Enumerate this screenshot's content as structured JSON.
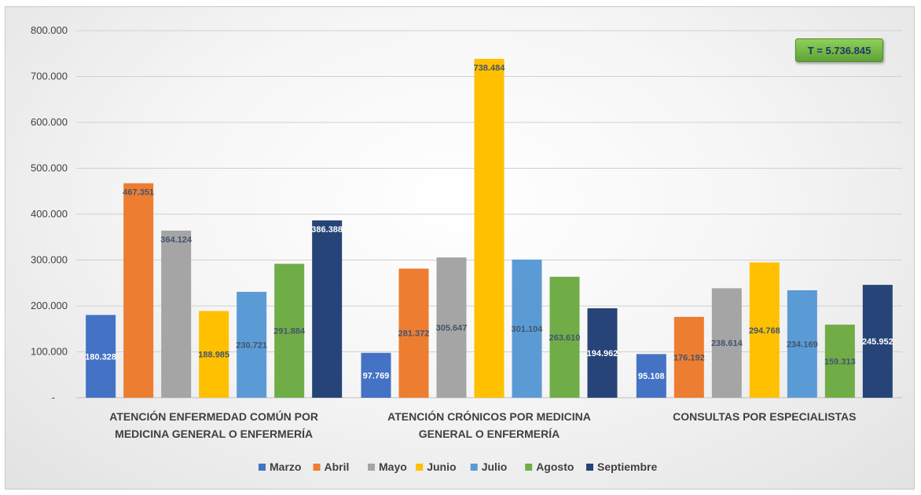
{
  "chart_data": {
    "type": "bar",
    "categories": [
      [
        "ATENCIÓN ENFERMEDAD COMÚN POR",
        "MEDICINA GENERAL O ENFERMERÍA"
      ],
      [
        "ATENCIÓN CRÓNICOS POR MEDICINA",
        "GENERAL O ENFERMERÍA"
      ],
      [
        "CONSULTAS POR ESPECIALISTAS"
      ]
    ],
    "series": [
      {
        "name": "Marzo",
        "color": "#4472c4",
        "values": [
          180328,
          97769,
          95108
        ],
        "labels": [
          "180.328",
          "97.769",
          "95.108"
        ],
        "label_color": "#ffffff"
      },
      {
        "name": "Abril",
        "color": "#ed7d31",
        "values": [
          467351,
          281372,
          176192
        ],
        "labels": [
          "467.351",
          "281.372",
          "176.192"
        ],
        "label_color": "#44546a"
      },
      {
        "name": "Mayo",
        "color": "#a5a5a5",
        "values": [
          364124,
          305647,
          238614
        ],
        "labels": [
          "364.124",
          "305.647",
          "238.614"
        ],
        "label_color": "#44546a"
      },
      {
        "name": "Junio",
        "color": "#ffc000",
        "values": [
          188985,
          738484,
          294768
        ],
        "labels": [
          "188.985",
          "738.484",
          "294.768"
        ],
        "label_color": "#44546a"
      },
      {
        "name": "Julio",
        "color": "#5b9bd5",
        "values": [
          230721,
          301104,
          234169
        ],
        "labels": [
          "230.721",
          "301.104",
          "234.169"
        ],
        "label_color": "#44546a"
      },
      {
        "name": "Agosto",
        "color": "#70ad47",
        "values": [
          291884,
          263610,
          159313
        ],
        "labels": [
          "291.884",
          "263.610",
          "159.313"
        ],
        "label_color": "#44546a"
      },
      {
        "name": "Septiembre",
        "color": "#264478",
        "values": [
          386388,
          194962,
          245952
        ],
        "labels": [
          "386.388",
          "194.962",
          "245.952"
        ],
        "label_color": "#ffffff"
      }
    ],
    "y_ticks": [
      {
        "value": 0,
        "label": "-"
      },
      {
        "value": 100000,
        "label": "100.000"
      },
      {
        "value": 200000,
        "label": "200.000"
      },
      {
        "value": 300000,
        "label": "300.000"
      },
      {
        "value": 400000,
        "label": "400.000"
      },
      {
        "value": 500000,
        "label": "500.000"
      },
      {
        "value": 600000,
        "label": "600.000"
      },
      {
        "value": 700000,
        "label": "700.000"
      },
      {
        "value": 800000,
        "label": "800.000"
      }
    ],
    "ylim": [
      0,
      800000
    ],
    "grid": true,
    "legend_position": "bottom",
    "annotation": "T = 5.736.845",
    "title": "",
    "xlabel": "",
    "ylabel": ""
  }
}
